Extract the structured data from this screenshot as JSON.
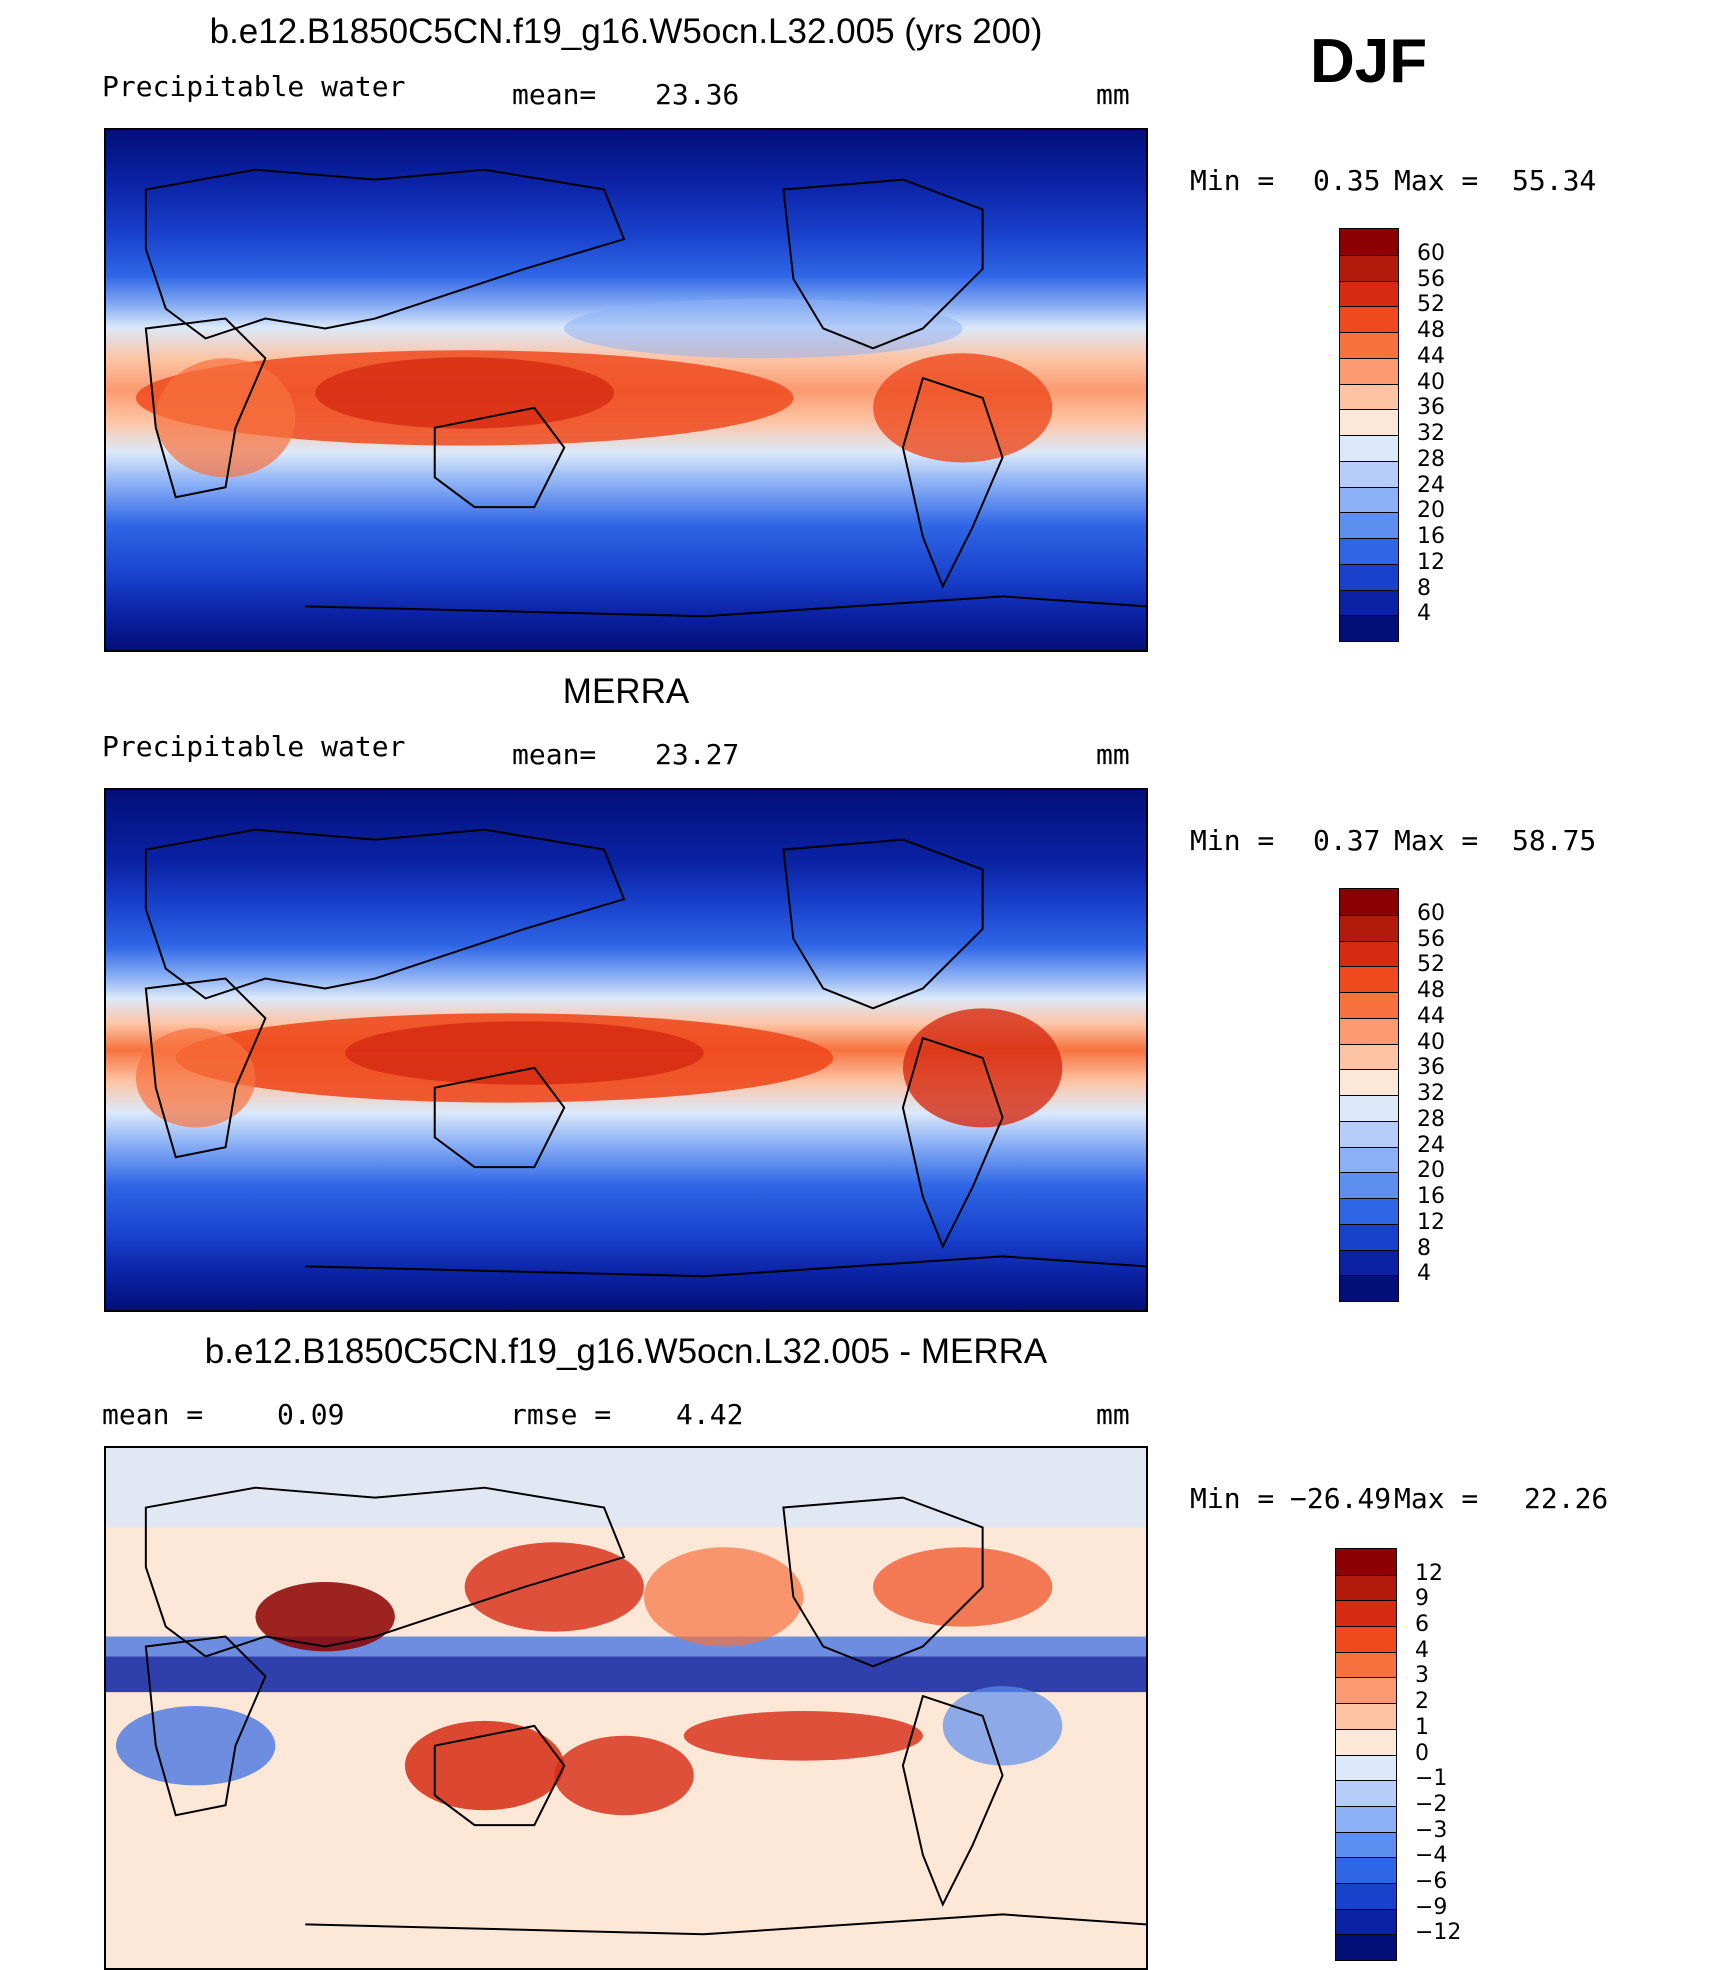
{
  "season": "DJF",
  "units": "mm",
  "panels": [
    {
      "id": "model",
      "title": "b.e12.B1850C5CN.f19_g16.W5ocn.L32.005 (yrs 200)",
      "left_label": "Precipitable water",
      "stat1_label": "mean=",
      "stat1_value": "23.36",
      "unit_label": "mm",
      "min_label": "Min =",
      "min_value": "0.35",
      "max_label": "Max =",
      "max_value": "55.34",
      "colorbar_labels": [
        "60",
        "56",
        "52",
        "48",
        "44",
        "40",
        "36",
        "32",
        "28",
        "24",
        "20",
        "16",
        "12",
        "8",
        "4"
      ],
      "colorbar_colors": [
        "#8b0000",
        "#b21b0c",
        "#d62a12",
        "#ee4a1e",
        "#f7723f",
        "#fb9a70",
        "#fdc4a4",
        "#fde7d6",
        "#dbe9fa",
        "#b5cdf8",
        "#8bb0f5",
        "#5c8ff0",
        "#2f66e6",
        "#1841cc",
        "#0b22a5",
        "#03107a"
      ]
    },
    {
      "id": "obs",
      "title": "MERRA",
      "left_label": "Precipitable water",
      "stat1_label": "mean=",
      "stat1_value": "23.27",
      "unit_label": "mm",
      "min_label": "Min =",
      "min_value": "0.37",
      "max_label": "Max =",
      "max_value": "58.75",
      "colorbar_labels": [
        "60",
        "56",
        "52",
        "48",
        "44",
        "40",
        "36",
        "32",
        "28",
        "24",
        "20",
        "16",
        "12",
        "8",
        "4"
      ],
      "colorbar_colors": [
        "#8b0000",
        "#b21b0c",
        "#d62a12",
        "#ee4a1e",
        "#f7723f",
        "#fb9a70",
        "#fdc4a4",
        "#fde7d6",
        "#dbe9fa",
        "#b5cdf8",
        "#8bb0f5",
        "#5c8ff0",
        "#2f66e6",
        "#1841cc",
        "#0b22a5",
        "#03107a"
      ]
    },
    {
      "id": "diff",
      "title": "b.e12.B1850C5CN.f19_g16.W5ocn.L32.005 - MERRA",
      "stat0_label": "mean =",
      "stat0_value": "0.09",
      "stat1_label": "rmse =",
      "stat1_value": "4.42",
      "unit_label": "mm",
      "min_label": "Min =",
      "min_value": "−26.49",
      "max_label": "Max =",
      "max_value": "22.26",
      "colorbar_labels": [
        "12",
        "9",
        "6",
        "4",
        "3",
        "2",
        "1",
        "0",
        "−1",
        "−2",
        "−3",
        "−4",
        "−6",
        "−9",
        "−12"
      ],
      "colorbar_colors": [
        "#8b0000",
        "#b21b0c",
        "#d62a12",
        "#ee4a1e",
        "#f7723f",
        "#fb9a70",
        "#fdc4a4",
        "#fde7d6",
        "#dbe9fa",
        "#b5cdf8",
        "#8bb0f5",
        "#5c8ff0",
        "#2f66e6",
        "#1841cc",
        "#0b22a5",
        "#03107a"
      ]
    }
  ]
}
